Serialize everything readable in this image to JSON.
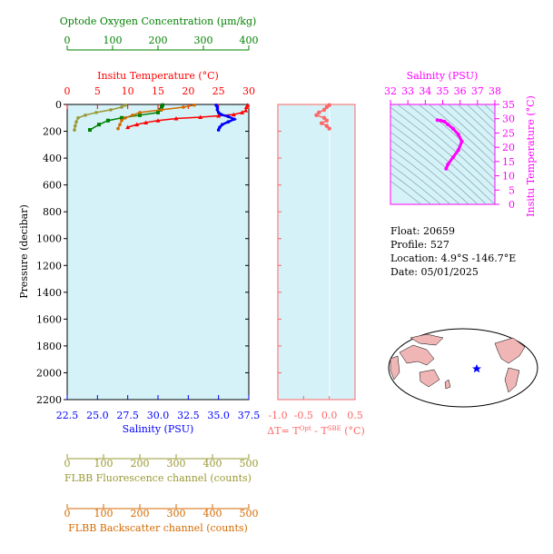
{
  "colors": {
    "oxygen": "#008000",
    "temperature": "#ff0000",
    "salinity": "#0000ff",
    "dt": "#ff6666",
    "ts": "#ff00ff",
    "fluor": "#999933",
    "backscatter": "#d46a00",
    "plot_bg": "#d4f2f8",
    "axis": "#000000"
  },
  "main_panel": {
    "oxygen_axis": {
      "title": "Optode Oxygen Concentration (µm/kg)",
      "ticks": [
        "0",
        "100",
        "200",
        "300",
        "400"
      ],
      "range": [
        0,
        400
      ]
    },
    "temperature_axis": {
      "title": "Insitu Temperature (°C)",
      "ticks": [
        "0",
        "5",
        "10",
        "15",
        "20",
        "25",
        "30"
      ],
      "range": [
        0,
        30
      ]
    },
    "salinity_axis": {
      "title": "Salinity (PSU)",
      "ticks": [
        "22.5",
        "25.0",
        "27.5",
        "30.0",
        "32.5",
        "35.0",
        "37.5"
      ],
      "range": [
        22.5,
        37.5
      ]
    },
    "pressure_axis": {
      "title": "Pressure (decibar)",
      "ticks": [
        "0",
        "200",
        "400",
        "600",
        "800",
        "1000",
        "1200",
        "1400",
        "1600",
        "1800",
        "2000",
        "2200"
      ],
      "range": [
        0,
        2200
      ]
    },
    "fluor_axis": {
      "title": "FLBB Fluorescence channel (counts)",
      "ticks": [
        "0",
        "100",
        "200",
        "300",
        "400",
        "500"
      ],
      "range": [
        0,
        500
      ]
    },
    "backscatter_axis": {
      "title": "FLBB Backscatter channel (counts)",
      "ticks": [
        "0",
        "100",
        "200",
        "300",
        "400",
        "500"
      ],
      "range": [
        0,
        500
      ]
    }
  },
  "dt_panel": {
    "ticks": [
      "-1.0",
      "-0.5",
      "0.0",
      "0.5"
    ],
    "range": [
      -1.0,
      0.5
    ],
    "xlabel_main": "ΔT= T",
    "xlabel_sup1": "Opt",
    "xlabel_mid": " - T",
    "xlabel_sup2": "SBE",
    "xlabel_end": " (°C)"
  },
  "ts_panel": {
    "salinity_title": "Salinity (PSU)",
    "salinity_ticks": [
      "32",
      "33",
      "34",
      "35",
      "36",
      "37",
      "38"
    ],
    "salinity_range": [
      32,
      38
    ],
    "temperature_title": "Insitu Temperature (°C)",
    "temperature_ticks": [
      "0",
      "5",
      "10",
      "15",
      "20",
      "25",
      "30",
      "35"
    ],
    "temperature_range": [
      0,
      35
    ]
  },
  "info": {
    "float": "Float:  20659",
    "profile": "Profile:  527",
    "location": "Location:  4.9°S  -146.7°E",
    "date": "Date:  05/01/2025"
  },
  "chart_data": [
    {
      "type": "line",
      "name": "main-profile",
      "series": [
        {
          "name": "temperature",
          "axis": "temperature",
          "x": [
            29.8,
            29.6,
            29.5,
            28.9,
            27.5,
            25.0,
            22.0,
            18.0,
            15.0,
            13.0,
            11.5,
            10.0
          ],
          "y": [
            5,
            20,
            45,
            60,
            75,
            85,
            95,
            105,
            120,
            135,
            150,
            170
          ]
        },
        {
          "name": "salinity",
          "axis": "salinity",
          "x": [
            34.8,
            34.9,
            34.9,
            35.0,
            35.2,
            35.8,
            36.3,
            35.8,
            35.3,
            35.1,
            35.0
          ],
          "y": [
            5,
            20,
            40,
            60,
            75,
            90,
            110,
            130,
            150,
            170,
            190
          ]
        },
        {
          "name": "oxygen",
          "axis": "oxygen",
          "x": [
            210,
            208,
            205,
            200,
            160,
            120,
            90,
            70,
            50
          ],
          "y": [
            5,
            20,
            40,
            60,
            80,
            100,
            120,
            150,
            190
          ]
        },
        {
          "name": "fluorescence",
          "axis": "fluor",
          "x": [
            160,
            150,
            120,
            80,
            50,
            30,
            25,
            22,
            20
          ],
          "y": [
            5,
            20,
            40,
            60,
            80,
            100,
            130,
            160,
            190
          ]
        },
        {
          "name": "backscatter",
          "axis": "backscatter",
          "x": [
            350,
            320,
            260,
            200,
            180,
            160,
            150,
            145,
            140
          ],
          "y": [
            5,
            20,
            40,
            60,
            80,
            100,
            120,
            150,
            180
          ]
        }
      ]
    },
    {
      "type": "line",
      "name": "delta-t",
      "series": [
        {
          "name": "ΔT",
          "x": [
            0.0,
            -0.05,
            -0.1,
            -0.2,
            -0.25,
            -0.1,
            -0.05,
            -0.15,
            -0.05,
            0.0
          ],
          "y": [
            5,
            20,
            40,
            60,
            80,
            100,
            120,
            140,
            160,
            180
          ]
        }
      ]
    },
    {
      "type": "line",
      "name": "ts-diagram",
      "series": [
        {
          "name": "T-S",
          "x": [
            34.7,
            34.9,
            35.1,
            35.3,
            35.6,
            35.9,
            36.1,
            35.9,
            35.6,
            35.3,
            35.2
          ],
          "y": [
            29.5,
            29.3,
            29.0,
            28.0,
            26.5,
            24.5,
            22.0,
            19.0,
            16.5,
            14.0,
            12.5
          ]
        }
      ]
    }
  ]
}
